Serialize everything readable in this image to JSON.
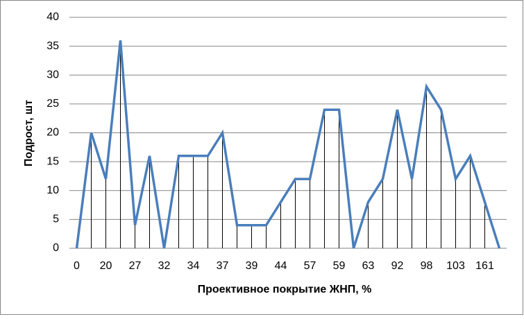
{
  "chart_data": {
    "type": "line",
    "x_label": "Проективное покрытие ЖНП, %",
    "y_label": "Подрост, шт",
    "categories": [
      "0",
      null,
      "20",
      null,
      "27",
      null,
      "32",
      null,
      "34",
      null,
      "37",
      null,
      "39",
      null,
      "44",
      null,
      "57",
      null,
      "59",
      null,
      "63",
      null,
      "92",
      null,
      "98",
      null,
      "103",
      null,
      "161",
      null
    ],
    "series": [
      {
        "color": "#4a7ebb",
        "values": [
          0,
          20,
          12,
          36,
          4,
          16,
          0,
          16,
          16,
          16,
          20,
          4,
          4,
          4,
          8,
          12,
          12,
          24,
          24,
          0,
          8,
          12,
          24,
          12,
          28,
          24,
          12,
          16,
          8,
          0
        ]
      }
    ],
    "ylim": [
      0,
      40
    ],
    "yticks": [
      0,
      5,
      10,
      15,
      20,
      25,
      30,
      35,
      40
    ],
    "grid": true,
    "drop_lines": true
  }
}
